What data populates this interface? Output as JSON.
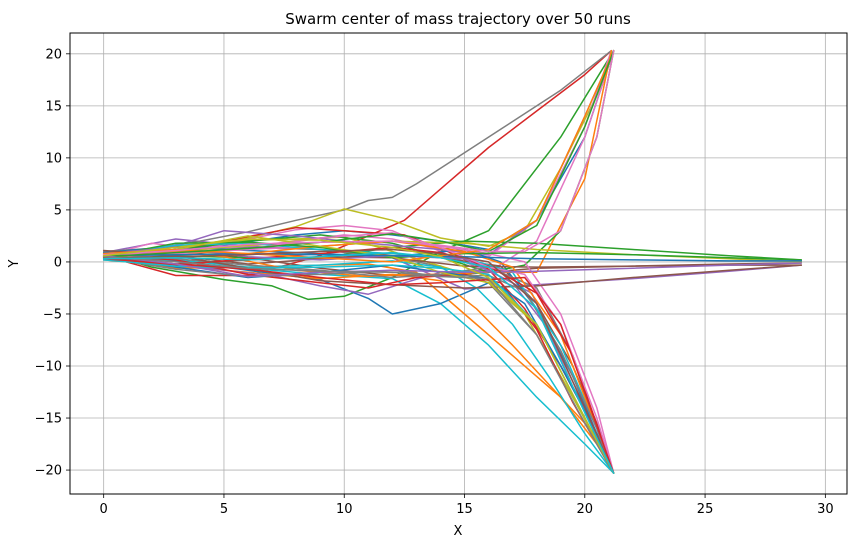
{
  "chart_data": {
    "type": "line",
    "title": "Swarm center of mass trajectory over 50 runs",
    "xlabel": "X",
    "ylabel": "Y",
    "xlim": [
      -1.4,
      30.9
    ],
    "ylim": [
      -22.3,
      22.0
    ],
    "xticks": [
      0,
      5,
      10,
      15,
      20,
      25,
      30
    ],
    "yticks": [
      -20,
      -15,
      -10,
      -5,
      0,
      5,
      10,
      15,
      20
    ],
    "ytick_labels": [
      "−20",
      "−15",
      "−10",
      "−5",
      "0",
      "5",
      "10",
      "15",
      "20"
    ],
    "grid": true,
    "legend": "none",
    "colors": [
      "#1f77b4",
      "#ff7f0e",
      "#2ca02c",
      "#d62728",
      "#9467bd",
      "#8c564b",
      "#e377c2",
      "#7f7f7f",
      "#bcbd22",
      "#17becf"
    ],
    "series": [
      {
        "x": [
          0,
          2,
          5,
          8,
          10,
          12,
          14,
          16,
          18,
          20,
          21.2
        ],
        "y": [
          0.5,
          1.0,
          1.6,
          2.6,
          3.0,
          2.6,
          2.0,
          1.2,
          4.0,
          12.0,
          20.3
        ]
      },
      {
        "x": [
          0,
          3,
          6,
          9,
          11,
          13,
          15,
          17,
          19,
          20.6,
          21.2
        ],
        "y": [
          0.3,
          -0.6,
          -0.5,
          -0.3,
          -0.2,
          -1.0,
          -5.0,
          -9.0,
          -13.0,
          -17.0,
          -20.3
        ]
      },
      {
        "x": [
          0,
          2,
          5,
          7,
          8.5,
          10,
          12,
          14,
          16,
          19,
          21.2
        ],
        "y": [
          0.8,
          -0.5,
          -1.7,
          -2.3,
          -3.6,
          -3.3,
          -1.5,
          1.0,
          3.0,
          12.0,
          20.3
        ]
      },
      {
        "x": [
          0,
          3,
          6,
          9,
          10.5,
          12.5,
          14,
          16,
          18,
          20,
          21.1
        ],
        "y": [
          0.6,
          -1.3,
          -1.3,
          0.6,
          2.0,
          4.0,
          7.0,
          11.0,
          14.5,
          18.0,
          20.3
        ]
      },
      {
        "x": [
          0,
          3,
          6,
          9,
          12,
          15,
          18,
          22,
          26,
          29
        ],
        "y": [
          0.9,
          2.2,
          1.5,
          1.2,
          0.4,
          -2.6,
          -2.2,
          -1.6,
          -0.9,
          -0.3
        ]
      },
      {
        "x": [
          0,
          3,
          6,
          9,
          12,
          15,
          18,
          22,
          26,
          29
        ],
        "y": [
          0.7,
          1.0,
          0.4,
          -0.6,
          -1.3,
          -1.2,
          -0.6,
          -0.4,
          -0.3,
          -0.3
        ]
      },
      {
        "x": [
          0,
          2,
          4,
          6,
          8,
          10,
          12,
          14,
          16,
          18,
          20,
          21.2
        ],
        "y": [
          0.6,
          1.8,
          1.2,
          2.2,
          3.1,
          3.5,
          3.0,
          1.0,
          -1.0,
          2.0,
          12.0,
          20.3
        ]
      },
      {
        "x": [
          0,
          2,
          4,
          6,
          8,
          10,
          11,
          12,
          13,
          15,
          17,
          19,
          21.1
        ],
        "y": [
          1.0,
          1.3,
          2.0,
          2.9,
          4.0,
          5.0,
          5.9,
          6.2,
          7.5,
          10.5,
          13.5,
          16.5,
          20.3
        ]
      },
      {
        "x": [
          0,
          3,
          6,
          8,
          10,
          12,
          14,
          16,
          17.5,
          19,
          20.5,
          21.2
        ],
        "y": [
          0.8,
          1.4,
          2.3,
          3.4,
          5.1,
          4.0,
          2.3,
          1.5,
          3.0,
          9.0,
          16.0,
          20.3
        ]
      },
      {
        "x": [
          0,
          3,
          6,
          9,
          12,
          14,
          16,
          18,
          20,
          21.2
        ],
        "y": [
          0.4,
          0.6,
          -0.6,
          -1.2,
          -1.6,
          -4.0,
          -8.0,
          -13.0,
          -17.5,
          -20.3
        ]
      },
      {
        "x": [
          0,
          3,
          6,
          9,
          11,
          12,
          14,
          16,
          18,
          20,
          21.2
        ],
        "y": [
          0.5,
          0.1,
          -0.8,
          -1.7,
          -3.5,
          -5.0,
          -4.0,
          -2.0,
          -6.0,
          -14.0,
          -20.3
        ]
      },
      {
        "x": [
          0,
          3,
          6,
          9,
          12,
          14,
          15.5,
          17,
          19,
          20.5,
          21.2
        ],
        "y": [
          0.2,
          -0.4,
          -1.0,
          -1.6,
          -1.2,
          -1.8,
          -4.5,
          -8.0,
          -13.0,
          -17.5,
          -20.3
        ]
      },
      {
        "x": [
          0,
          3,
          6,
          9,
          12,
          15,
          18,
          22,
          26,
          29
        ],
        "y": [
          0.6,
          0.6,
          0.4,
          0.4,
          1.4,
          2.0,
          1.8,
          1.2,
          0.6,
          0.2
        ]
      },
      {
        "x": [
          0,
          2,
          5,
          8,
          10,
          12.5,
          14,
          16,
          17.5,
          19,
          20.5,
          21.2
        ],
        "y": [
          0.7,
          0.6,
          2.0,
          3.3,
          3.0,
          2.6,
          1.3,
          -0.7,
          -4.5,
          -10.0,
          -16.5,
          -20.3
        ]
      },
      {
        "x": [
          0,
          3,
          5,
          7,
          9,
          11,
          12.5,
          14,
          16,
          17.8,
          19.5,
          21.2
        ],
        "y": [
          0.4,
          -0.2,
          -0.8,
          -1.3,
          -2.3,
          -3.1,
          -2.0,
          -1.0,
          -0.8,
          -3.0,
          -12.0,
          -20.3
        ]
      },
      {
        "x": [
          0,
          3,
          6,
          9,
          12,
          14,
          16.5,
          18,
          19.5,
          20.5,
          21.2
        ],
        "y": [
          0.8,
          0.6,
          -0.2,
          0.3,
          0.8,
          0.4,
          -0.4,
          -4.0,
          -10.0,
          -15.5,
          -20.3
        ]
      },
      {
        "x": [
          0,
          3,
          6,
          8,
          10,
          12,
          14,
          16,
          18,
          20,
          21.1
        ],
        "y": [
          0.5,
          1.0,
          1.5,
          2.0,
          2.6,
          2.2,
          1.2,
          0.5,
          4.0,
          13.0,
          20.3
        ]
      },
      {
        "x": [
          0,
          3,
          6,
          9,
          12,
          14,
          16,
          18,
          20,
          21.2
        ],
        "y": [
          0.3,
          0.8,
          1.4,
          1.2,
          0.4,
          -0.4,
          -2.0,
          -7.0,
          -15.0,
          -20.3
        ]
      },
      {
        "x": [
          0,
          2.5,
          5,
          8,
          10,
          12,
          14,
          16,
          17.5,
          19.5,
          21.2
        ],
        "y": [
          0.6,
          1.4,
          2.0,
          2.2,
          2.4,
          1.0,
          -0.4,
          -1.8,
          -5.0,
          -13.0,
          -20.3
        ]
      },
      {
        "x": [
          0,
          3,
          6,
          9,
          12,
          14,
          15.5,
          17,
          18.5,
          20,
          21.2
        ],
        "y": [
          0.2,
          0.2,
          -0.5,
          -0.3,
          0.1,
          -0.5,
          -2.5,
          -6.0,
          -11.0,
          -16.5,
          -20.3
        ]
      },
      {
        "x": [
          0,
          3,
          6,
          9,
          12,
          15,
          16.5,
          18,
          19.5,
          20.5,
          21.2
        ],
        "y": [
          0.9,
          1.5,
          1.1,
          0.8,
          0.5,
          1.2,
          0.0,
          -4.5,
          -11.0,
          -16.5,
          -20.3
        ]
      },
      {
        "x": [
          0,
          2,
          5,
          8,
          11,
          12.5,
          14,
          16,
          18,
          20,
          21.1
        ],
        "y": [
          0.8,
          1.2,
          0.5,
          -0.8,
          -1.4,
          -1.2,
          -1.2,
          -1.0,
          -1.0,
          8.0,
          20.3
        ]
      },
      {
        "x": [
          0,
          3,
          6,
          9,
          12,
          14,
          16,
          17.5,
          19,
          20.5,
          21.2
        ],
        "y": [
          0.4,
          1.2,
          2.0,
          2.6,
          1.8,
          0.5,
          -1.0,
          -0.3,
          3.0,
          12.0,
          20.3
        ]
      },
      {
        "x": [
          0,
          3,
          6,
          9,
          11,
          13,
          15,
          16.5,
          18,
          19.5,
          21.2
        ],
        "y": [
          0.6,
          0.2,
          -1.2,
          -2.0,
          -2.5,
          -1.5,
          -1.2,
          -2.0,
          -6.5,
          -13.5,
          -20.3
        ]
      },
      {
        "x": [
          0,
          2.5,
          5,
          8,
          10,
          12,
          14,
          16,
          18,
          20,
          21.2
        ],
        "y": [
          0.7,
          1.2,
          3.0,
          2.5,
          2.0,
          1.6,
          1.2,
          0.7,
          4.0,
          14.0,
          20.3
        ]
      },
      {
        "x": [
          0,
          3,
          6,
          9,
          12,
          15,
          18,
          22,
          26,
          29
        ],
        "y": [
          0.5,
          -0.2,
          0.2,
          0.5,
          0.4,
          -0.4,
          -0.5,
          -0.4,
          -0.2,
          -0.1
        ]
      },
      {
        "x": [
          0,
          3,
          6,
          9,
          12,
          14,
          16,
          17.5,
          19,
          20.5,
          21.2
        ],
        "y": [
          0.3,
          0.8,
          1.2,
          1.5,
          2.0,
          1.5,
          0.8,
          0.0,
          -5.0,
          -14.0,
          -20.3
        ]
      },
      {
        "x": [
          0,
          3,
          6,
          9,
          12,
          14,
          16,
          18,
          19.5,
          20.5,
          21.2
        ],
        "y": [
          0.8,
          0.3,
          -0.3,
          -0.8,
          -1.5,
          -1.2,
          -0.5,
          -2.5,
          -9.0,
          -16.0,
          -20.3
        ]
      },
      {
        "x": [
          0,
          3,
          6,
          9,
          12,
          15,
          18,
          22,
          26,
          29
        ],
        "y": [
          0.4,
          1.0,
          1.6,
          1.9,
          2.0,
          1.8,
          1.2,
          0.7,
          0.3,
          0.0
        ]
      },
      {
        "x": [
          0,
          3,
          6,
          9,
          12,
          15,
          17,
          19,
          20.5,
          21.2
        ],
        "y": [
          0.6,
          1.6,
          1.8,
          1.2,
          0.8,
          0.4,
          -1.0,
          -8.0,
          -16.0,
          -20.3
        ]
      },
      {
        "x": [
          0,
          3,
          6,
          9,
          12,
          14,
          16,
          17.5,
          19,
          20.5,
          21.2
        ],
        "y": [
          0.5,
          -0.5,
          -1.5,
          -1.0,
          -0.3,
          -1.0,
          -1.6,
          -4.0,
          -10.0,
          -16.5,
          -20.3
        ]
      },
      {
        "x": [
          0,
          3,
          6,
          9,
          12,
          15,
          17,
          19,
          20.5,
          21.2
        ],
        "y": [
          0.7,
          1.0,
          0.8,
          1.5,
          2.0,
          1.0,
          -0.5,
          -7.0,
          -16.0,
          -20.3
        ]
      },
      {
        "x": [
          0,
          3,
          6,
          9,
          12,
          15,
          18,
          22,
          26,
          29
        ],
        "y": [
          0.5,
          1.8,
          1.9,
          1.4,
          0.4,
          0.8,
          0.9,
          0.7,
          0.4,
          0.2
        ]
      },
      {
        "x": [
          0,
          3,
          6,
          9,
          12,
          14,
          16,
          18,
          19.5,
          21.2
        ],
        "y": [
          0.3,
          -0.3,
          0.3,
          0.8,
          1.4,
          0.9,
          -0.4,
          -3.0,
          -9.0,
          -20.3
        ]
      },
      {
        "x": [
          0,
          3,
          6,
          9,
          12,
          15,
          17,
          18.5,
          20,
          21.2
        ],
        "y": [
          0.8,
          1.4,
          0.5,
          0.2,
          0.6,
          0.3,
          -2.0,
          -6.5,
          -14.0,
          -20.3
        ]
      },
      {
        "x": [
          0,
          3,
          6,
          9,
          12,
          15,
          18,
          22,
          26,
          29
        ],
        "y": [
          1.1,
          0.6,
          -0.6,
          -1.8,
          -2.2,
          -2.5,
          -2.3,
          -1.5,
          -0.8,
          -0.3
        ]
      },
      {
        "x": [
          0,
          3,
          6,
          9,
          12,
          14,
          16,
          17.5,
          19,
          20.5,
          21.2
        ],
        "y": [
          0.6,
          0.9,
          1.2,
          2.3,
          2.8,
          1.4,
          -0.5,
          -1.2,
          -6.0,
          -15.0,
          -20.3
        ]
      },
      {
        "x": [
          0,
          3,
          6,
          9,
          12,
          14,
          16,
          17.5,
          19,
          20.5,
          21.2
        ],
        "y": [
          0.4,
          -0.7,
          -1.4,
          -1.2,
          -0.8,
          -1.4,
          -1.3,
          -2.8,
          -8.5,
          -16.0,
          -20.3
        ]
      },
      {
        "x": [
          0,
          3,
          6,
          9,
          12,
          14,
          16,
          18,
          20,
          21.2
        ],
        "y": [
          0.7,
          1.2,
          2.5,
          1.5,
          0.5,
          -1.0,
          -2.0,
          -6.0,
          -15.0,
          -20.3
        ]
      },
      {
        "x": [
          0,
          3,
          6,
          9,
          12,
          14,
          16,
          18,
          20,
          21.2
        ],
        "y": [
          0.2,
          -0.4,
          -0.6,
          -0.5,
          -0.3,
          -0.6,
          -1.2,
          -6.0,
          -15.0,
          -20.3
        ]
      },
      {
        "x": [
          0,
          3,
          6,
          9,
          12,
          15,
          18,
          22,
          26,
          29
        ],
        "y": [
          0.6,
          0.7,
          0.8,
          0.7,
          0.6,
          0.5,
          0.3,
          0.2,
          0.1,
          0.1
        ]
      },
      {
        "x": [
          0,
          3,
          6,
          9,
          12,
          14,
          16,
          18,
          20,
          21.2
        ],
        "y": [
          0.8,
          1.2,
          0.8,
          0.4,
          0.0,
          0.6,
          1.2,
          4.0,
          14.0,
          20.3
        ]
      },
      {
        "x": [
          0,
          3,
          6,
          9,
          12,
          14,
          16,
          18,
          20,
          21.2
        ],
        "y": [
          0.5,
          0.9,
          1.3,
          1.9,
          2.7,
          2.0,
          1.0,
          3.5,
          13.0,
          20.3
        ]
      },
      {
        "x": [
          0,
          3,
          6,
          9,
          12,
          14,
          16,
          17.5,
          19,
          21.2
        ],
        "y": [
          0.3,
          -0.2,
          -0.7,
          -1.5,
          -2.2,
          -2.0,
          -1.7,
          -1.5,
          -6.0,
          -20.3
        ]
      },
      {
        "x": [
          0,
          3,
          6,
          9,
          12,
          15,
          18,
          22,
          26,
          29
        ],
        "y": [
          0.6,
          -0.2,
          -1.4,
          -1.0,
          -0.8,
          -1.0,
          -0.9,
          -0.6,
          -0.3,
          -0.1
        ]
      },
      {
        "x": [
          0,
          3,
          6,
          9,
          12,
          14,
          16,
          18,
          20,
          21.2
        ],
        "y": [
          0.4,
          0.5,
          0.7,
          1.0,
          1.2,
          0.8,
          0.0,
          -4.0,
          -14.0,
          -20.3
        ]
      },
      {
        "x": [
          0,
          3,
          6,
          9,
          12,
          14,
          16,
          17.5,
          19,
          20.5,
          21.2
        ],
        "y": [
          0.7,
          1.1,
          1.7,
          1.9,
          2.0,
          1.6,
          1.0,
          1.0,
          3.0,
          12.0,
          20.3
        ]
      },
      {
        "x": [
          0,
          3,
          6,
          9,
          12,
          14,
          16,
          18,
          20,
          21.2
        ],
        "y": [
          0.5,
          0.0,
          -0.6,
          -0.9,
          -1.0,
          -1.4,
          -1.6,
          -7.0,
          -15.5,
          -20.3
        ]
      },
      {
        "x": [
          0,
          3,
          6,
          9,
          12,
          14,
          16,
          18,
          20,
          21.2
        ],
        "y": [
          0.6,
          1.4,
          2.2,
          2.1,
          1.4,
          0.5,
          -1.5,
          -6.0,
          -15.0,
          -20.3
        ]
      },
      {
        "x": [
          0,
          3,
          6,
          9,
          12,
          14,
          16,
          18,
          20,
          21.2
        ],
        "y": [
          0.3,
          0.4,
          0.2,
          0.5,
          0.9,
          0.4,
          -0.5,
          -4.5,
          -14.5,
          -20.3
        ]
      }
    ]
  }
}
